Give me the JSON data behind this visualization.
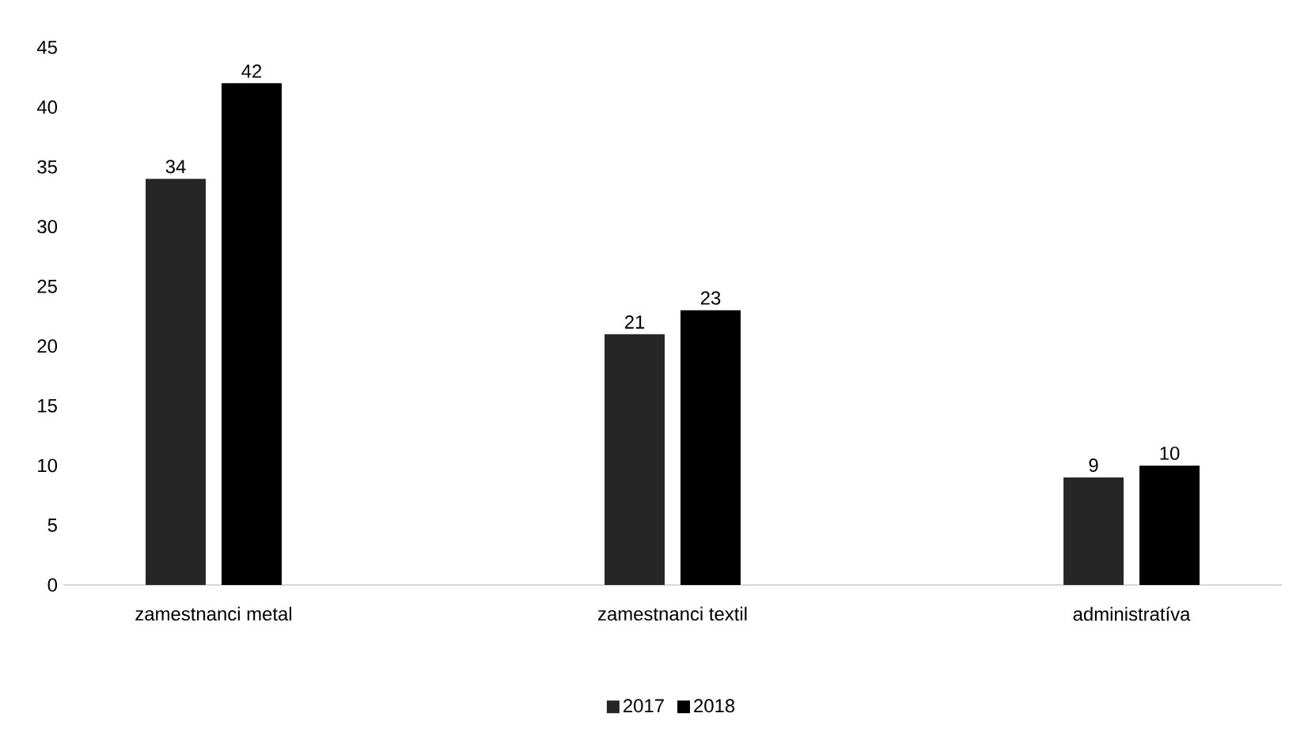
{
  "chart_data": {
    "type": "bar",
    "categories": [
      "zamestnanci metal",
      "zamestnanci textil",
      "administratíva"
    ],
    "series": [
      {
        "name": "2017",
        "color": "#262626",
        "values": [
          34,
          21,
          9
        ]
      },
      {
        "name": "2018",
        "color": "#000000",
        "values": [
          42,
          23,
          10
        ]
      }
    ],
    "ylim": [
      0,
      45
    ],
    "yticks": [
      0,
      5,
      10,
      15,
      20,
      25,
      30,
      35,
      40,
      45
    ],
    "data_labels": true,
    "legend": "bottom",
    "grid": false
  }
}
